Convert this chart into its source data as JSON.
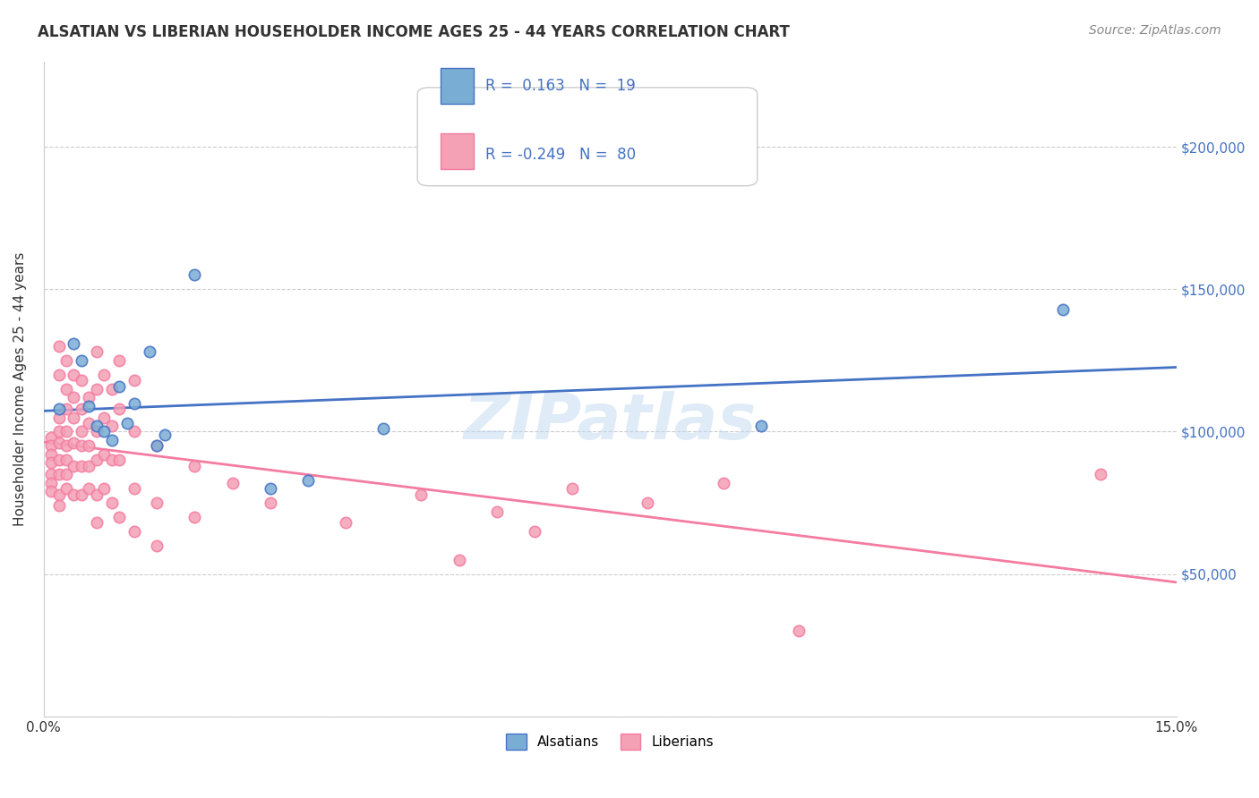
{
  "title": "ALSATIAN VS LIBERIAN HOUSEHOLDER INCOME AGES 25 - 44 YEARS CORRELATION CHART",
  "source": "Source: ZipAtlas.com",
  "xlabel": "",
  "ylabel": "Householder Income Ages 25 - 44 years",
  "xlim": [
    0.0,
    0.15
  ],
  "ylim": [
    0,
    230000
  ],
  "xticks": [
    0.0,
    0.03,
    0.06,
    0.09,
    0.12,
    0.15
  ],
  "xticklabels": [
    "0.0%",
    "",
    "",
    "",
    "",
    "15.0%"
  ],
  "ytick_positions": [
    0,
    50000,
    100000,
    150000,
    200000
  ],
  "ytick_labels": [
    "",
    "$50,000",
    "$100,000",
    "$150,000",
    "$200,000"
  ],
  "alsatian_color": "#7aadd4",
  "liberian_color": "#f4a0b5",
  "alsatian_line_color": "#4472c4",
  "liberian_line_color": "#f47ca0",
  "watermark": "ZIPatlas",
  "watermark_color": "#c0d8f0",
  "legend_R_alsatian": "0.163",
  "legend_N_alsatian": "19",
  "legend_R_liberian": "-0.249",
  "legend_N_liberian": "80",
  "alsatian_points": [
    [
      0.002,
      108000
    ],
    [
      0.004,
      131000
    ],
    [
      0.005,
      125000
    ],
    [
      0.006,
      109000
    ],
    [
      0.007,
      102000
    ],
    [
      0.008,
      100000
    ],
    [
      0.009,
      97000
    ],
    [
      0.01,
      116000
    ],
    [
      0.011,
      103000
    ],
    [
      0.012,
      110000
    ],
    [
      0.014,
      128000
    ],
    [
      0.015,
      95000
    ],
    [
      0.016,
      99000
    ],
    [
      0.02,
      155000
    ],
    [
      0.03,
      80000
    ],
    [
      0.035,
      83000
    ],
    [
      0.045,
      101000
    ],
    [
      0.095,
      102000
    ],
    [
      0.135,
      143000
    ]
  ],
  "liberian_points": [
    [
      0.001,
      98000
    ],
    [
      0.001,
      95000
    ],
    [
      0.001,
      92000
    ],
    [
      0.001,
      89000
    ],
    [
      0.001,
      85000
    ],
    [
      0.001,
      82000
    ],
    [
      0.001,
      79000
    ],
    [
      0.002,
      130000
    ],
    [
      0.002,
      120000
    ],
    [
      0.002,
      105000
    ],
    [
      0.002,
      100000
    ],
    [
      0.002,
      96000
    ],
    [
      0.002,
      90000
    ],
    [
      0.002,
      85000
    ],
    [
      0.002,
      78000
    ],
    [
      0.002,
      74000
    ],
    [
      0.003,
      125000
    ],
    [
      0.003,
      115000
    ],
    [
      0.003,
      108000
    ],
    [
      0.003,
      100000
    ],
    [
      0.003,
      95000
    ],
    [
      0.003,
      90000
    ],
    [
      0.003,
      85000
    ],
    [
      0.003,
      80000
    ],
    [
      0.004,
      120000
    ],
    [
      0.004,
      112000
    ],
    [
      0.004,
      105000
    ],
    [
      0.004,
      96000
    ],
    [
      0.004,
      88000
    ],
    [
      0.004,
      78000
    ],
    [
      0.005,
      118000
    ],
    [
      0.005,
      108000
    ],
    [
      0.005,
      100000
    ],
    [
      0.005,
      95000
    ],
    [
      0.005,
      88000
    ],
    [
      0.005,
      78000
    ],
    [
      0.006,
      112000
    ],
    [
      0.006,
      103000
    ],
    [
      0.006,
      95000
    ],
    [
      0.006,
      88000
    ],
    [
      0.006,
      80000
    ],
    [
      0.007,
      128000
    ],
    [
      0.007,
      115000
    ],
    [
      0.007,
      100000
    ],
    [
      0.007,
      90000
    ],
    [
      0.007,
      78000
    ],
    [
      0.007,
      68000
    ],
    [
      0.008,
      120000
    ],
    [
      0.008,
      105000
    ],
    [
      0.008,
      92000
    ],
    [
      0.008,
      80000
    ],
    [
      0.009,
      115000
    ],
    [
      0.009,
      102000
    ],
    [
      0.009,
      90000
    ],
    [
      0.009,
      75000
    ],
    [
      0.01,
      125000
    ],
    [
      0.01,
      108000
    ],
    [
      0.01,
      90000
    ],
    [
      0.01,
      70000
    ],
    [
      0.012,
      118000
    ],
    [
      0.012,
      100000
    ],
    [
      0.012,
      80000
    ],
    [
      0.012,
      65000
    ],
    [
      0.015,
      95000
    ],
    [
      0.015,
      75000
    ],
    [
      0.015,
      60000
    ],
    [
      0.02,
      88000
    ],
    [
      0.02,
      70000
    ],
    [
      0.025,
      82000
    ],
    [
      0.03,
      75000
    ],
    [
      0.04,
      68000
    ],
    [
      0.05,
      78000
    ],
    [
      0.055,
      55000
    ],
    [
      0.06,
      72000
    ],
    [
      0.065,
      65000
    ],
    [
      0.07,
      80000
    ],
    [
      0.08,
      75000
    ],
    [
      0.09,
      82000
    ],
    [
      0.1,
      30000
    ],
    [
      0.14,
      85000
    ]
  ]
}
